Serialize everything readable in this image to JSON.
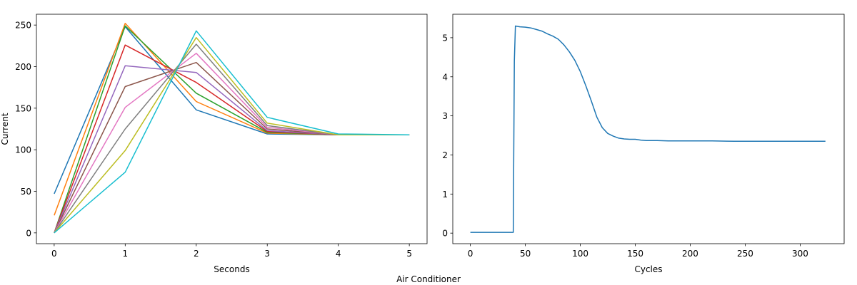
{
  "figure": {
    "caption": "Air Conditioner"
  },
  "chart_data": [
    {
      "type": "line",
      "xlabel": "Seconds",
      "ylabel": "Current",
      "xlim": [
        -0.25,
        5.25
      ],
      "ylim": [
        -13,
        263
      ],
      "xticks": [
        0,
        1,
        2,
        3,
        4,
        5
      ],
      "yticks": [
        0,
        50,
        100,
        150,
        200,
        250
      ],
      "grid": false,
      "x": [
        0,
        1,
        2,
        3,
        4,
        5
      ],
      "series": [
        {
          "color": "#1f77b4",
          "values": [
            47,
            248,
            148,
            119,
            118,
            118
          ]
        },
        {
          "color": "#ff7f0e",
          "values": [
            21,
            252,
            158,
            120,
            118,
            118
          ]
        },
        {
          "color": "#2ca02c",
          "values": [
            0,
            249,
            168,
            121,
            118,
            118
          ]
        },
        {
          "color": "#d62728",
          "values": [
            0,
            226,
            181,
            122,
            118,
            118
          ]
        },
        {
          "color": "#9467bd",
          "values": [
            0,
            201,
            193,
            123,
            118,
            118
          ]
        },
        {
          "color": "#8c564b",
          "values": [
            0,
            176,
            205,
            125,
            118,
            118
          ]
        },
        {
          "color": "#e377c2",
          "values": [
            0,
            151,
            216,
            127,
            118,
            118
          ]
        },
        {
          "color": "#7f7f7f",
          "values": [
            0,
            125,
            227,
            129,
            118,
            118
          ]
        },
        {
          "color": "#bcbd22",
          "values": [
            0,
            99,
            235,
            132,
            118,
            118
          ]
        },
        {
          "color": "#17becf",
          "values": [
            0,
            73,
            243,
            139,
            119,
            118
          ]
        }
      ]
    },
    {
      "type": "line",
      "xlabel": "Cycles",
      "ylabel": "",
      "xlim": [
        -16,
        340
      ],
      "ylim": [
        -0.27,
        5.6
      ],
      "xticks": [
        0,
        50,
        100,
        150,
        200,
        250,
        300
      ],
      "yticks": [
        0,
        1,
        2,
        3,
        4,
        5
      ],
      "grid": false,
      "series": [
        {
          "color": "#1f77b4",
          "points": [
            [
              0,
              0.02
            ],
            [
              39,
              0.02
            ],
            [
              40,
              4.4
            ],
            [
              41,
              5.3
            ],
            [
              45,
              5.28
            ],
            [
              50,
              5.27
            ],
            [
              55,
              5.25
            ],
            [
              60,
              5.21
            ],
            [
              65,
              5.17
            ],
            [
              70,
              5.1
            ],
            [
              75,
              5.04
            ],
            [
              80,
              4.96
            ],
            [
              85,
              4.82
            ],
            [
              90,
              4.64
            ],
            [
              95,
              4.42
            ],
            [
              100,
              4.13
            ],
            [
              105,
              3.77
            ],
            [
              110,
              3.38
            ],
            [
              115,
              2.97
            ],
            [
              120,
              2.7
            ],
            [
              125,
              2.55
            ],
            [
              130,
              2.48
            ],
            [
              135,
              2.43
            ],
            [
              140,
              2.41
            ],
            [
              145,
              2.4
            ],
            [
              150,
              2.4
            ],
            [
              155,
              2.38
            ],
            [
              160,
              2.37
            ],
            [
              170,
              2.37
            ],
            [
              180,
              2.36
            ],
            [
              200,
              2.36
            ],
            [
              220,
              2.36
            ],
            [
              240,
              2.35
            ],
            [
              260,
              2.35
            ],
            [
              280,
              2.35
            ],
            [
              300,
              2.35
            ],
            [
              323,
              2.35
            ]
          ]
        }
      ]
    }
  ]
}
